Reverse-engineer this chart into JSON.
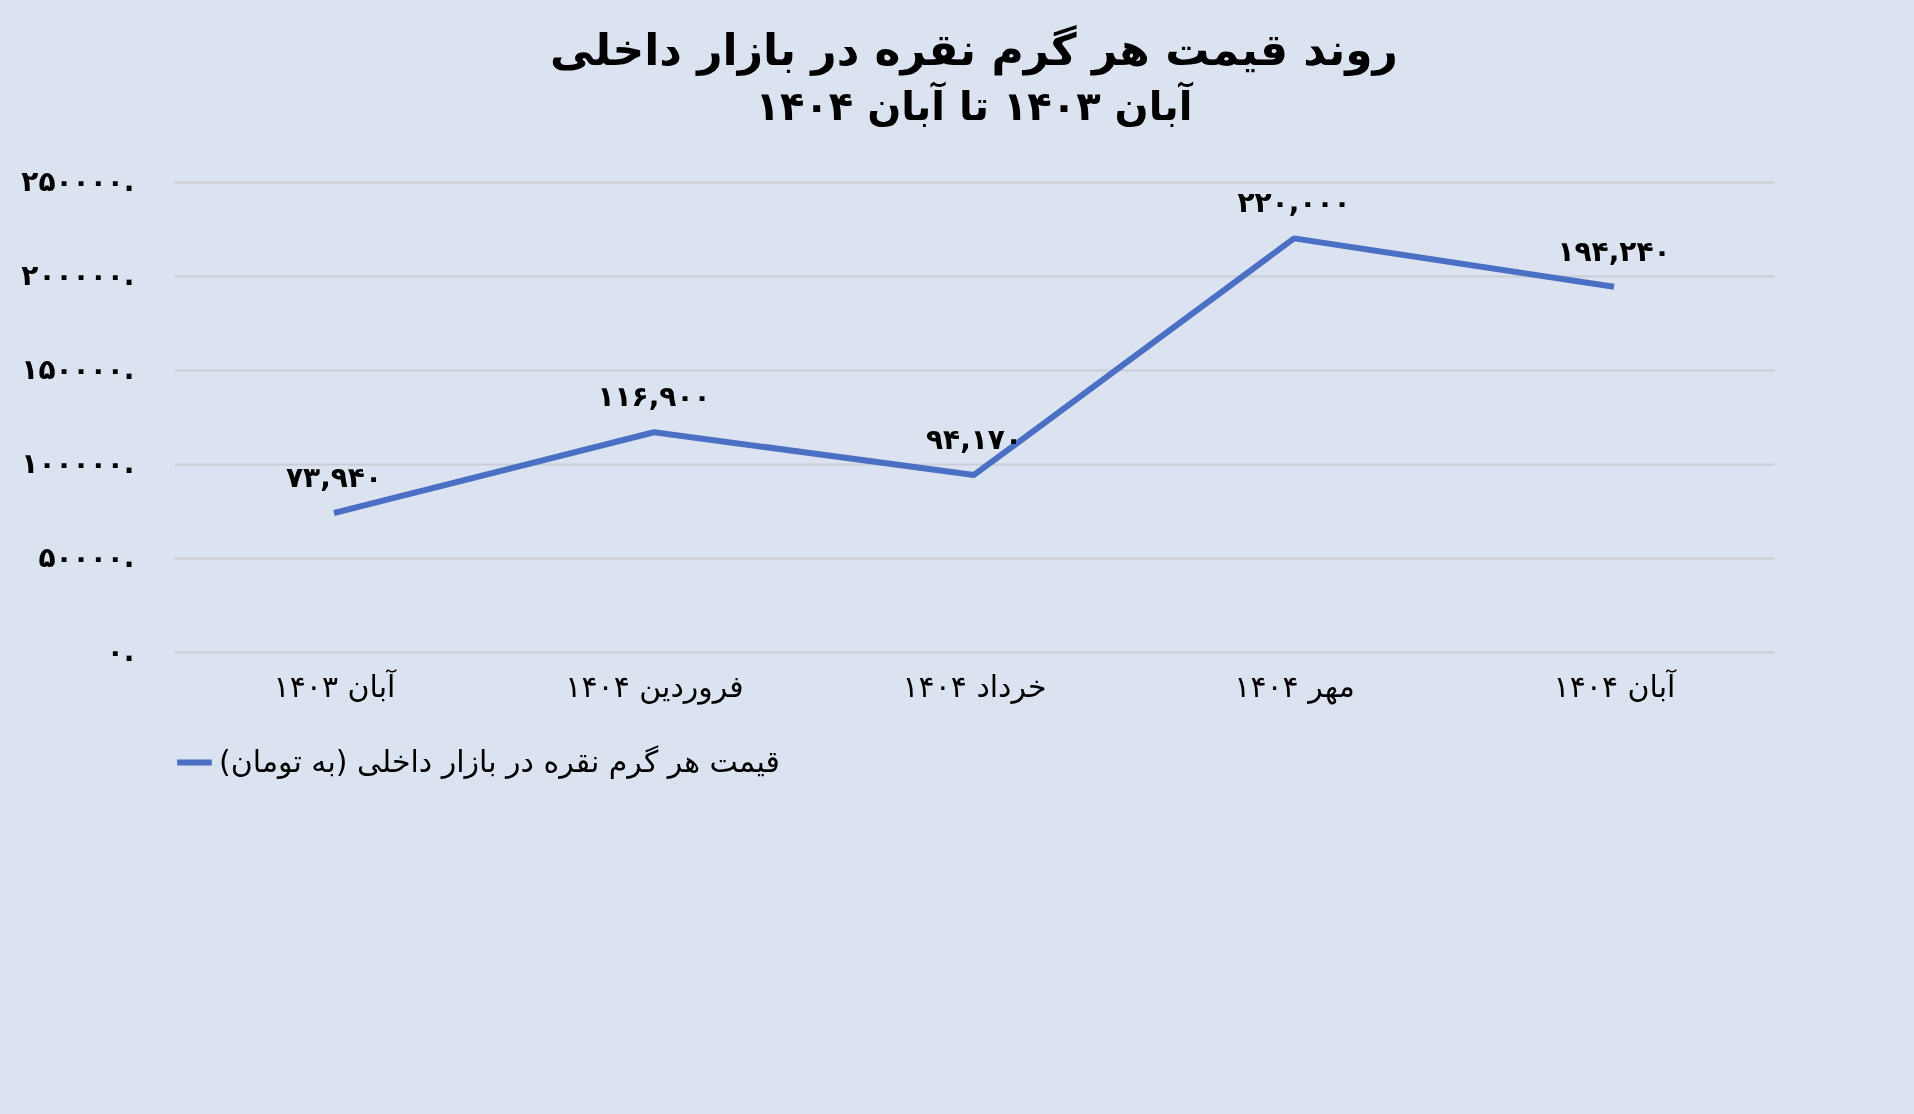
{
  "chart_data": {
    "type": "line",
    "title": "روند قیمت هر گرم نقره در بازار داخلی",
    "subtitle": "آبان ۱۴۰۳ تا آبان ۱۴۰۴",
    "categories": [
      "آبان ۱۴۰۳",
      "فروردین ۱۴۰۴",
      "خرداد ۱۴۰۴",
      "مهر ۱۴۰۴",
      "آبان ۱۴۰۴"
    ],
    "series": [
      {
        "name": "قیمت هر گرم نقره در بازار داخلی (به تومان)",
        "color": "#4a6fc4",
        "values": [
          73940,
          116900,
          94170,
          220000,
          194240
        ],
        "value_labels": [
          "۷۳,۹۴۰",
          "۱۱۶,۹۰۰",
          "۹۴,۱۷۰",
          "۲۲۰,۰۰۰",
          "۱۹۴,۲۴۰"
        ]
      }
    ],
    "ylim": [
      0,
      250000
    ],
    "yticks": [
      {
        "value": 0,
        "label": "۰."
      },
      {
        "value": 50000,
        "label": "۵۰۰۰۰."
      },
      {
        "value": 100000,
        "label": "۱۰۰۰۰۰."
      },
      {
        "value": 150000,
        "label": "۱۵۰۰۰۰."
      },
      {
        "value": 200000,
        "label": "۲۰۰۰۰۰."
      },
      {
        "value": 250000,
        "label": "۲۵۰۰۰۰."
      }
    ],
    "grid": "y",
    "legend": "bottom",
    "marker": "none",
    "line_style": "solid"
  }
}
